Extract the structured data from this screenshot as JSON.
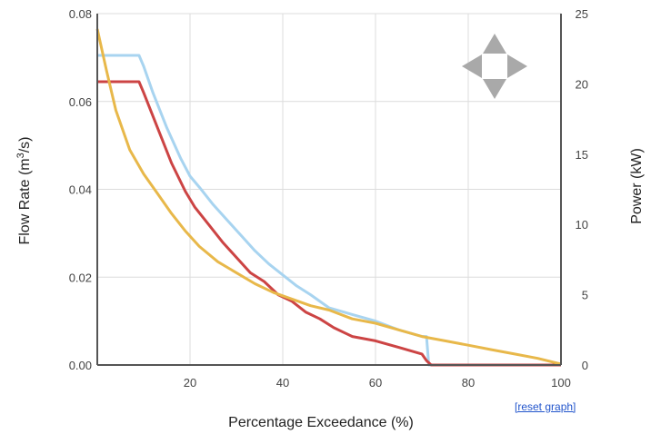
{
  "chart_data": {
    "type": "line",
    "x_axis": {
      "label": "Percentage Exceedance (%)",
      "range": [
        0,
        100
      ],
      "ticks": [
        20,
        40,
        60,
        80,
        100
      ],
      "grid": true
    },
    "y_left": {
      "label": "Flow Rate (m³/s)",
      "label_main": "Flow Rate (m",
      "label_sup": "3",
      "label_tail": "/s)",
      "range": [
        0,
        0.08
      ],
      "ticks": [
        "0.00",
        "0.02",
        "0.04",
        "0.06",
        "0.08"
      ]
    },
    "y_right": {
      "label": "Power (kW)",
      "range": [
        0,
        25
      ],
      "ticks": [
        "0",
        "5",
        "10",
        "15",
        "20",
        "25"
      ]
    },
    "grid": true,
    "series": [
      {
        "color": "#a8d4f0",
        "axis": "left",
        "points": [
          [
            0,
            0.0705
          ],
          [
            9,
            0.0705
          ],
          [
            10,
            0.068
          ],
          [
            12,
            0.062
          ],
          [
            15,
            0.054
          ],
          [
            18,
            0.047
          ],
          [
            20,
            0.043
          ],
          [
            22,
            0.0405
          ],
          [
            25,
            0.0365
          ],
          [
            28,
            0.033
          ],
          [
            31,
            0.0295
          ],
          [
            34,
            0.026
          ],
          [
            37,
            0.023
          ],
          [
            40,
            0.0205
          ],
          [
            43,
            0.018
          ],
          [
            46,
            0.016
          ],
          [
            50,
            0.013
          ],
          [
            55,
            0.0115
          ],
          [
            60,
            0.01
          ],
          [
            65,
            0.008
          ],
          [
            70,
            0.0065
          ],
          [
            71,
            0.0065
          ],
          [
            71.5,
            0.0
          ],
          [
            100,
            0.0
          ]
        ]
      },
      {
        "color": "#cc4444",
        "axis": "left",
        "points": [
          [
            0,
            0.0645
          ],
          [
            9,
            0.0645
          ],
          [
            10,
            0.062
          ],
          [
            13,
            0.054
          ],
          [
            16,
            0.046
          ],
          [
            19,
            0.0395
          ],
          [
            21,
            0.036
          ],
          [
            24,
            0.032
          ],
          [
            27,
            0.028
          ],
          [
            30,
            0.0245
          ],
          [
            33,
            0.021
          ],
          [
            36,
            0.019
          ],
          [
            39,
            0.016
          ],
          [
            42,
            0.0145
          ],
          [
            45,
            0.012
          ],
          [
            48,
            0.0105
          ],
          [
            51,
            0.0085
          ],
          [
            55,
            0.0065
          ],
          [
            60,
            0.0055
          ],
          [
            65,
            0.004
          ],
          [
            70,
            0.0025
          ],
          [
            71,
            0.001
          ],
          [
            72,
            0.0
          ],
          [
            100,
            0.0
          ]
        ]
      },
      {
        "color": "#e8b84a",
        "axis": "left",
        "points": [
          [
            0,
            0.0765
          ],
          [
            2,
            0.067
          ],
          [
            4,
            0.058
          ],
          [
            7,
            0.049
          ],
          [
            10,
            0.0435
          ],
          [
            13,
            0.039
          ],
          [
            16,
            0.0345
          ],
          [
            19,
            0.0305
          ],
          [
            22,
            0.027
          ],
          [
            26,
            0.0235
          ],
          [
            30,
            0.021
          ],
          [
            34,
            0.0185
          ],
          [
            38,
            0.0165
          ],
          [
            42,
            0.015
          ],
          [
            46,
            0.0135
          ],
          [
            50,
            0.0125
          ],
          [
            55,
            0.0105
          ],
          [
            60,
            0.0095
          ],
          [
            65,
            0.008
          ],
          [
            70,
            0.0065
          ],
          [
            75,
            0.0055
          ],
          [
            80,
            0.0045
          ],
          [
            85,
            0.0035
          ],
          [
            90,
            0.0025
          ],
          [
            95,
            0.0015
          ],
          [
            100,
            0.0002
          ]
        ]
      }
    ]
  },
  "controls": {
    "reset_label": "[reset graph]",
    "pan_icon": "four-way-pan-arrows-icon"
  }
}
